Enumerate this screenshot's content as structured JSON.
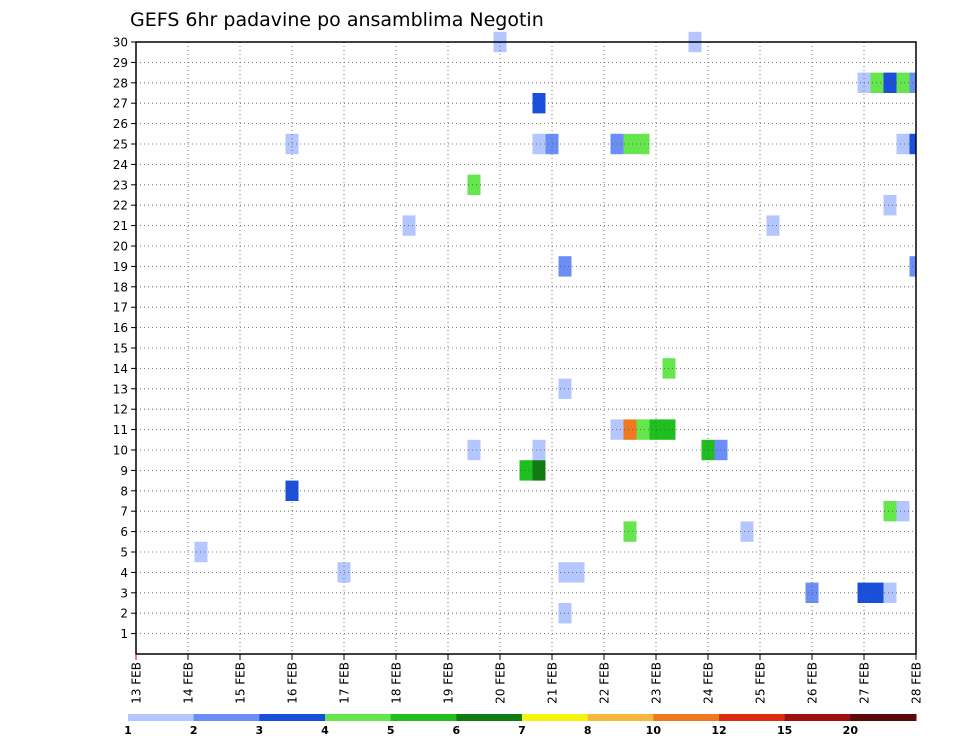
{
  "chart_data": {
    "type": "heatmap",
    "title": "GEFS 6hr padavine po ansamblima Negotin",
    "x_tick_labels": [
      "13 FEB",
      "14 FEB",
      "15 FEB",
      "16 FEB",
      "17 FEB",
      "18 FEB",
      "19 FEB",
      "20 FEB",
      "21 FEB",
      "22 FEB",
      "23 FEB",
      "24 FEB",
      "25 FEB",
      "26 FEB",
      "27 FEB",
      "28 FEB"
    ],
    "y_tick_labels": [
      "1",
      "2",
      "3",
      "4",
      "5",
      "6",
      "7",
      "8",
      "9",
      "10",
      "11",
      "12",
      "13",
      "14",
      "15",
      "16",
      "17",
      "18",
      "19",
      "20",
      "21",
      "22",
      "23",
      "24",
      "25",
      "26",
      "27",
      "28",
      "29",
      "30"
    ],
    "x_range_days": [
      0,
      15
    ],
    "y_range_members": [
      0,
      30
    ],
    "grid": true,
    "colorbar": {
      "colors": [
        "#b3c6ff",
        "#6a8ef5",
        "#1a4fdc",
        "#66e64d",
        "#1fbf1f",
        "#117a11",
        "#f5f50a",
        "#f5b83c",
        "#f0781e",
        "#dc2d14",
        "#a00f0f",
        "#5a0a0a"
      ],
      "labels": [
        "1",
        "2",
        "3",
        "4",
        "5",
        "6",
        "7",
        "8",
        "10",
        "12",
        "15",
        "20"
      ]
    },
    "cells": [
      {
        "t": 7.0,
        "m": 30,
        "c": 0
      },
      {
        "t": 10.75,
        "m": 30,
        "c": 0
      },
      {
        "t": 14.0,
        "m": 28,
        "c": 0
      },
      {
        "t": 14.25,
        "m": 28,
        "c": 3
      },
      {
        "t": 14.5,
        "m": 28,
        "c": 2
      },
      {
        "t": 14.75,
        "m": 28,
        "c": 3
      },
      {
        "t": 15.0,
        "m": 28,
        "c": 1
      },
      {
        "t": 7.75,
        "m": 27,
        "c": 2
      },
      {
        "t": 3.0,
        "m": 25,
        "c": 0
      },
      {
        "t": 7.75,
        "m": 25,
        "c": 0
      },
      {
        "t": 8.0,
        "m": 25,
        "c": 1
      },
      {
        "t": 9.25,
        "m": 25,
        "c": 1
      },
      {
        "t": 9.5,
        "m": 25,
        "c": 3
      },
      {
        "t": 9.75,
        "m": 25,
        "c": 3
      },
      {
        "t": 14.75,
        "m": 25,
        "c": 0
      },
      {
        "t": 15.0,
        "m": 25,
        "c": 2
      },
      {
        "t": 6.5,
        "m": 23,
        "c": 3
      },
      {
        "t": 14.5,
        "m": 22,
        "c": 0
      },
      {
        "t": 5.25,
        "m": 21,
        "c": 0
      },
      {
        "t": 12.25,
        "m": 21,
        "c": 0
      },
      {
        "t": 8.25,
        "m": 19,
        "c": 1
      },
      {
        "t": 15.0,
        "m": 19,
        "c": 1
      },
      {
        "t": 10.25,
        "m": 14,
        "c": 3
      },
      {
        "t": 8.25,
        "m": 13,
        "c": 0
      },
      {
        "t": 9.25,
        "m": 11,
        "c": 0
      },
      {
        "t": 9.5,
        "m": 11,
        "c": 8
      },
      {
        "t": 9.75,
        "m": 11,
        "c": 3
      },
      {
        "t": 10.0,
        "m": 11,
        "c": 4
      },
      {
        "t": 10.25,
        "m": 11,
        "c": 4
      },
      {
        "t": 6.5,
        "m": 10,
        "c": 0
      },
      {
        "t": 7.75,
        "m": 10,
        "c": 0
      },
      {
        "t": 11.0,
        "m": 10,
        "c": 4
      },
      {
        "t": 11.25,
        "m": 10,
        "c": 1
      },
      {
        "t": 7.5,
        "m": 9,
        "c": 4
      },
      {
        "t": 7.75,
        "m": 9,
        "c": 5
      },
      {
        "t": 3.0,
        "m": 8,
        "c": 2
      },
      {
        "t": 14.5,
        "m": 7,
        "c": 3
      },
      {
        "t": 14.75,
        "m": 7,
        "c": 0
      },
      {
        "t": 9.5,
        "m": 6,
        "c": 3
      },
      {
        "t": 11.75,
        "m": 6,
        "c": 0
      },
      {
        "t": 1.25,
        "m": 5,
        "c": 0
      },
      {
        "t": 4.0,
        "m": 4,
        "c": 0
      },
      {
        "t": 8.25,
        "m": 4,
        "c": 0
      },
      {
        "t": 8.5,
        "m": 4,
        "c": 0
      },
      {
        "t": 13.0,
        "m": 3,
        "c": 1
      },
      {
        "t": 14.0,
        "m": 3,
        "c": 2
      },
      {
        "t": 14.25,
        "m": 3,
        "c": 2
      },
      {
        "t": 14.5,
        "m": 3,
        "c": 0
      },
      {
        "t": 8.25,
        "m": 2,
        "c": 0
      }
    ]
  }
}
